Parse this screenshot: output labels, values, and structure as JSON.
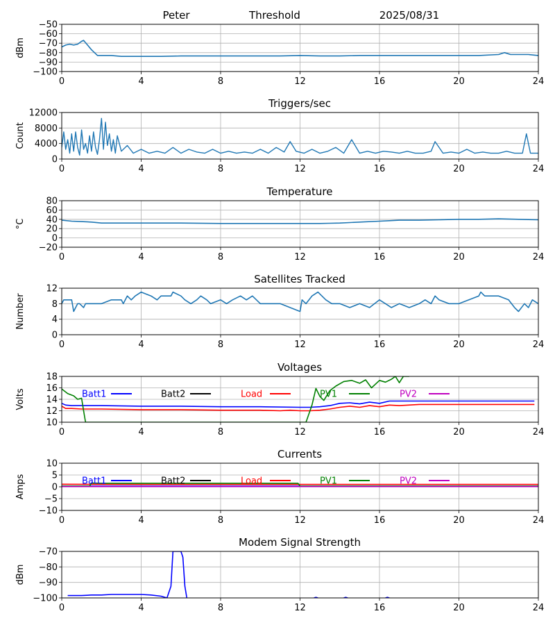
{
  "header": {
    "station": "Peter",
    "label": "Threshold",
    "date": "2025/08/31"
  },
  "colors": {
    "tab_blue": "#1f77b4",
    "batt1": "#0000ff",
    "batt2": "#000000",
    "load": "#ff0000",
    "pv1": "#008000",
    "pv2": "#bf00bf",
    "grid": "#b0b0b0"
  },
  "legend_labels": [
    "Batt1",
    "Batt2",
    "Load",
    "PV1",
    "PV2"
  ],
  "chart_data": [
    {
      "type": "line",
      "title": "",
      "xlabel": "",
      "ylabel": "dBm",
      "xlim": [
        0,
        24
      ],
      "ylim": [
        -100,
        -50
      ],
      "xticks": [
        "0",
        "4",
        "8",
        "12",
        "16",
        "20",
        "24"
      ],
      "yticks": [
        "−50",
        "−60",
        "−70",
        "−80",
        "−90",
        "−100"
      ],
      "grid": true,
      "series": [
        {
          "x": [
            0,
            0.2,
            0.4,
            0.6,
            0.8,
            1.0,
            1.1,
            1.3,
            1.5,
            1.7,
            1.8,
            2.0,
            2.5,
            3,
            4,
            5,
            6,
            7,
            8,
            9,
            10,
            11,
            12,
            13,
            14,
            15,
            16,
            17,
            18,
            19,
            20,
            21,
            22,
            22.3,
            22.6,
            23,
            23.5,
            24
          ],
          "y": [
            -74,
            -72,
            -71,
            -72,
            -71,
            -68,
            -67,
            -72,
            -77,
            -81,
            -83,
            -83,
            -83,
            -84,
            -84,
            -84,
            -83.5,
            -83.5,
            -83.5,
            -83.5,
            -83.5,
            -83.5,
            -83,
            -83.5,
            -83.5,
            -83,
            -83,
            -83,
            -83,
            -83,
            -83,
            -83,
            -82,
            -80,
            -82,
            -82,
            -82,
            -83
          ]
        }
      ]
    },
    {
      "type": "line",
      "title": "Triggers/sec",
      "xlabel": "",
      "ylabel": "Count",
      "xlim": [
        0,
        24
      ],
      "ylim": [
        0,
        12000
      ],
      "xticks": [
        "0",
        "4",
        "8",
        "12",
        "16",
        "20",
        "24"
      ],
      "yticks": [
        "12000",
        "8000",
        "4000",
        "0"
      ],
      "grid": true,
      "series": [
        {
          "x": [
            0,
            0.1,
            0.2,
            0.3,
            0.4,
            0.5,
            0.6,
            0.7,
            0.8,
            0.9,
            1.0,
            1.1,
            1.2,
            1.3,
            1.4,
            1.5,
            1.6,
            1.7,
            1.8,
            1.9,
            2.0,
            2.1,
            2.2,
            2.3,
            2.4,
            2.5,
            2.6,
            2.7,
            2.8,
            3.0,
            3.3,
            3.6,
            4.0,
            4.4,
            4.8,
            5.2,
            5.6,
            6.0,
            6.4,
            6.8,
            7.2,
            7.6,
            8.0,
            8.4,
            8.8,
            9.2,
            9.6,
            10,
            10.4,
            10.8,
            11.2,
            11.5,
            11.8,
            12.2,
            12.6,
            13,
            13.4,
            13.8,
            14.2,
            14.6,
            15,
            15.4,
            15.8,
            16.2,
            16.6,
            17,
            17.4,
            17.8,
            18.2,
            18.6,
            18.8,
            19.2,
            19.6,
            20,
            20.4,
            20.8,
            21.2,
            21.6,
            22,
            22.4,
            22.8,
            23.2,
            23.4,
            23.6,
            24
          ],
          "y": [
            3000,
            7000,
            2500,
            5000,
            1500,
            6500,
            2000,
            7000,
            3000,
            1000,
            7500,
            2500,
            4000,
            1500,
            6000,
            2000,
            7000,
            3000,
            1200,
            5000,
            10500,
            2500,
            9500,
            3500,
            6500,
            2000,
            5000,
            1500,
            6000,
            2000,
            3500,
            1500,
            2500,
            1500,
            2000,
            1500,
            3000,
            1500,
            2500,
            1800,
            1500,
            2500,
            1500,
            2000,
            1500,
            1800,
            1500,
            2500,
            1500,
            3000,
            1800,
            4500,
            2000,
            1500,
            2500,
            1500,
            2000,
            3000,
            1500,
            5000,
            1500,
            2000,
            1500,
            2000,
            1800,
            1500,
            2000,
            1500,
            1500,
            2000,
            4500,
            1500,
            1800,
            1500,
            2500,
            1500,
            1800,
            1500,
            1500,
            2000,
            1500,
            1500,
            6500,
            1500,
            1500
          ]
        }
      ]
    },
    {
      "type": "line",
      "title": "Temperature",
      "xlabel": "",
      "ylabel": "°C",
      "xlim": [
        0,
        24
      ],
      "ylim": [
        -20,
        80
      ],
      "xticks": [
        "0",
        "4",
        "8",
        "12",
        "16",
        "20",
        "24"
      ],
      "yticks": [
        "80",
        "60",
        "40",
        "20",
        "0",
        "−20"
      ],
      "grid": true,
      "series": [
        {
          "x": [
            0,
            0.5,
            1,
            1.5,
            2,
            3,
            4,
            6,
            8,
            10,
            12,
            13,
            13.5,
            14,
            14.5,
            15,
            16,
            16.5,
            17,
            18,
            19,
            20,
            21,
            22,
            23,
            24
          ],
          "y": [
            38,
            36,
            35,
            34,
            32,
            32,
            32,
            32,
            31,
            31,
            31,
            31,
            31.5,
            32,
            33,
            34,
            36,
            37,
            38,
            38,
            39,
            40,
            40,
            41,
            40,
            39
          ]
        }
      ]
    },
    {
      "type": "line",
      "title": "Satellites Tracked",
      "xlabel": "",
      "ylabel": "Number",
      "xlim": [
        0,
        24
      ],
      "ylim": [
        0,
        12
      ],
      "xticks": [
        "0",
        "4",
        "8",
        "12",
        "16",
        "20",
        "24"
      ],
      "yticks": [
        "12",
        "8",
        "4",
        "0"
      ],
      "grid": true,
      "series": [
        {
          "x": [
            0,
            0.1,
            0.5,
            0.6,
            0.8,
            0.9,
            1.1,
            1.2,
            1.6,
            2.0,
            2.5,
            3.0,
            3.1,
            3.3,
            3.5,
            3.7,
            4.0,
            4.5,
            4.8,
            5.0,
            5.5,
            5.6,
            6.0,
            6.2,
            6.5,
            6.8,
            7.0,
            7.3,
            7.5,
            8.0,
            8.3,
            8.6,
            9.0,
            9.3,
            9.6,
            10,
            10.3,
            11,
            11.5,
            12,
            12.1,
            12.3,
            12.6,
            12.9,
            13.3,
            13.6,
            14,
            14.5,
            15,
            15.5,
            16,
            16.3,
            16.6,
            17,
            17.5,
            18,
            18.3,
            18.6,
            18.8,
            19,
            19.5,
            20,
            20.5,
            21,
            21.1,
            21.3,
            21.6,
            22,
            22.5,
            22.8,
            23,
            23.3,
            23.5,
            23.7,
            24
          ],
          "y": [
            8,
            9,
            9,
            6,
            8,
            8,
            7,
            8,
            8,
            8,
            9,
            9,
            8,
            10,
            9,
            10,
            11,
            10,
            9,
            10,
            10,
            11,
            10,
            9,
            8,
            9,
            10,
            9,
            8,
            9,
            8,
            9,
            10,
            9,
            10,
            8,
            8,
            8,
            7,
            6,
            9,
            8,
            10,
            11,
            9,
            8,
            8,
            7,
            8,
            7,
            9,
            8,
            7,
            8,
            7,
            8,
            9,
            8,
            10,
            9,
            8,
            8,
            9,
            10,
            11,
            10,
            10,
            10,
            9,
            7,
            6,
            8,
            7,
            9,
            8
          ]
        }
      ]
    },
    {
      "type": "line",
      "title": "Voltages",
      "xlabel": "",
      "ylabel": "Volts",
      "xlim": [
        0,
        24
      ],
      "ylim": [
        10,
        18
      ],
      "xticks": [
        "0",
        "4",
        "8",
        "12",
        "16",
        "20",
        "24"
      ],
      "yticks": [
        "18",
        "16",
        "14",
        "12",
        "10"
      ],
      "grid": true,
      "legend": "top",
      "series": [
        {
          "name": "Batt1",
          "x": [
            0,
            0.2,
            0.5,
            1,
            2,
            4,
            6,
            8,
            10,
            12,
            12.5,
            13,
            13.5,
            14,
            14.5,
            15,
            15.5,
            16,
            16.5,
            17,
            18,
            19,
            20,
            21,
            22,
            23,
            23.8
          ],
          "y": [
            13.3,
            13.0,
            12.9,
            12.9,
            12.9,
            12.8,
            12.8,
            12.7,
            12.7,
            12.6,
            12.6,
            12.7,
            12.9,
            13.3,
            13.4,
            13.2,
            13.5,
            13.3,
            13.7,
            13.7,
            13.7,
            13.7,
            13.7,
            13.7,
            13.7,
            13.7,
            13.7
          ]
        },
        {
          "name": "Batt2",
          "x": [],
          "y": []
        },
        {
          "name": "Load",
          "x": [
            0,
            0.2,
            0.5,
            1,
            2,
            4,
            6,
            8,
            10,
            11,
            11.5,
            12,
            12.5,
            13,
            13.5,
            14,
            14.5,
            15,
            15.5,
            16,
            16.5,
            17,
            18,
            19,
            20,
            21,
            22,
            23,
            23.8
          ],
          "y": [
            12.8,
            12.4,
            12.4,
            12.3,
            12.3,
            12.2,
            12.2,
            12.1,
            12.1,
            12.0,
            12.1,
            12.0,
            12.0,
            12.1,
            12.3,
            12.6,
            12.8,
            12.6,
            12.9,
            12.7,
            13.0,
            12.9,
            13.1,
            13.1,
            13.1,
            13.1,
            13.1,
            13.1,
            13.1
          ]
        },
        {
          "name": "PV1",
          "x": [
            0,
            0.3,
            0.6,
            0.8,
            1.0,
            1.1,
            1.2,
            12.3,
            12.6,
            12.8,
            13,
            13.2,
            13.5,
            13.8,
            14.2,
            14.6,
            15.0,
            15.3,
            15.6,
            16.0,
            16.3,
            16.6,
            16.8,
            17.0,
            17.2,
            17.5
          ],
          "y": [
            15.8,
            15.0,
            14.6,
            14.0,
            14.2,
            12.0,
            10.0,
            10.0,
            13.0,
            15.9,
            14.5,
            13.8,
            15.5,
            16.3,
            17.1,
            17.3,
            16.8,
            17.4,
            16.0,
            17.3,
            17.0,
            17.5,
            18.0,
            16.9,
            18.0,
            18.0
          ]
        },
        {
          "name": "PV2",
          "x": [],
          "y": []
        }
      ]
    },
    {
      "type": "line",
      "title": "Currents",
      "xlabel": "",
      "ylabel": "Amps",
      "xlim": [
        0,
        24
      ],
      "ylim": [
        -10,
        10
      ],
      "xticks": [
        "0",
        "4",
        "8",
        "12",
        "16",
        "20",
        "24"
      ],
      "yticks": [
        "10",
        "5",
        "0",
        "−5",
        "−10"
      ],
      "grid": true,
      "legend": "top",
      "series": [
        {
          "name": "Batt1",
          "x": [
            0,
            24
          ],
          "y": [
            0.3,
            0.3
          ]
        },
        {
          "name": "Batt2",
          "x": [],
          "y": []
        },
        {
          "name": "Load",
          "x": [
            0,
            4,
            8,
            12,
            16,
            20,
            24
          ],
          "y": [
            1.1,
            1.0,
            1.0,
            1.0,
            1.0,
            1.0,
            1.0
          ]
        },
        {
          "name": "PV1",
          "x": [
            0,
            1.4,
            1.5,
            2,
            4,
            6,
            8,
            10,
            11.9,
            12.0,
            24
          ],
          "y": [
            0.3,
            0.3,
            1.6,
            1.5,
            1.5,
            1.5,
            1.5,
            1.5,
            1.5,
            0.3,
            0.3
          ]
        },
        {
          "name": "PV2",
          "x": [
            0,
            24
          ],
          "y": [
            0.1,
            0.1
          ]
        }
      ]
    },
    {
      "type": "line",
      "title": "Modem Signal Strength",
      "xlabel": "",
      "ylabel": "dBm",
      "xlim": [
        0,
        24
      ],
      "ylim": [
        -110,
        -70
      ],
      "xticks": [
        "0",
        "4",
        "8",
        "12",
        "16",
        "20",
        "24"
      ],
      "yticks": [
        "−70",
        "−80",
        "−90",
        "−100"
      ],
      "grid": true,
      "series": [
        {
          "x": [
            0.3,
            1,
            1.5,
            2,
            2.5,
            3,
            3.5,
            4,
            4.5,
            5,
            5.3,
            5.5,
            5.6,
            5.8,
            6.0,
            6.1,
            6.2,
            6.3
          ],
          "y": [
            -108,
            -108,
            -107.5,
            -107.5,
            -107,
            -107,
            -107,
            -107,
            -107.5,
            -108.5,
            -110,
            -100,
            -70,
            -70,
            -70,
            -75,
            -100,
            -110
          ]
        },
        {
          "x": [
            12.7,
            12.8,
            12.9
          ],
          "y": [
            -110,
            -109.5,
            -110
          ]
        },
        {
          "x": [
            14.2,
            14.3,
            14.4
          ],
          "y": [
            -110,
            -109.5,
            -110
          ]
        },
        {
          "x": [
            16.3,
            16.4,
            16.5
          ],
          "y": [
            -110,
            -109.5,
            -110
          ]
        }
      ]
    }
  ]
}
